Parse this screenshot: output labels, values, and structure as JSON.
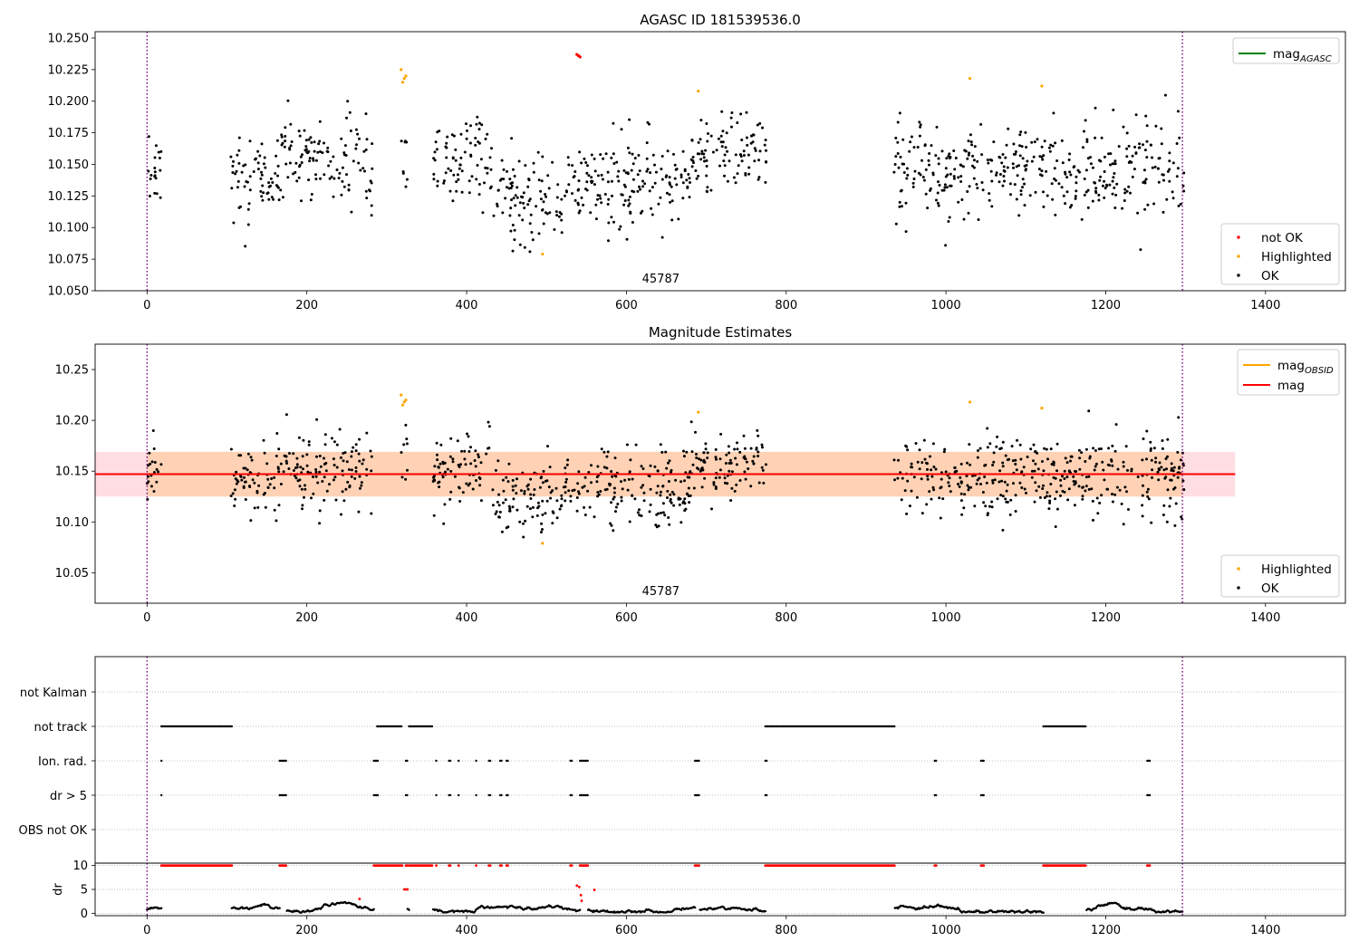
{
  "chart_data": [
    {
      "type": "scatter",
      "title": "AGASC ID 181539536.0",
      "xlim": [
        -65,
        1500
      ],
      "ylim": [
        10.05,
        10.255
      ],
      "x_ticks": [
        0,
        200,
        400,
        600,
        800,
        1000,
        1200,
        1400
      ],
      "y_ticks": [
        10.05,
        10.075,
        10.1,
        10.125,
        10.15,
        10.175,
        10.2,
        10.225,
        10.25
      ],
      "x_tick_labels": [
        "0",
        "200",
        "400",
        "600",
        "800",
        "1000",
        "1200",
        "1400"
      ],
      "y_tick_labels": [
        "10.050",
        "10.075",
        "10.100",
        "10.125",
        "10.150",
        "10.175",
        "10.200",
        "10.225",
        "10.250"
      ],
      "obsid_label": "45787",
      "obsid_label_x": 643,
      "obsid_boundaries": [
        0,
        1296
      ],
      "legend_lines": [
        {
          "label": "mag",
          "sub": "AGASC",
          "color": "#008000"
        }
      ],
      "legend_points": [
        {
          "label": "not OK",
          "color": "#ff0000"
        },
        {
          "label": "Highlighted",
          "color": "#ffa500"
        },
        {
          "label": "OK",
          "color": "#000000"
        }
      ],
      "not_ok_points": [
        [
          538,
          10.237
        ],
        [
          540,
          10.236
        ],
        [
          542,
          10.235
        ]
      ],
      "highlighted_points": [
        [
          318,
          10.225
        ],
        [
          320,
          10.215
        ],
        [
          322,
          10.218
        ],
        [
          324,
          10.22
        ],
        [
          495,
          10.079
        ],
        [
          690,
          10.208
        ],
        [
          1030,
          10.218
        ],
        [
          1120,
          10.212
        ]
      ],
      "ok_density_segments": [
        {
          "x": [
            0,
            18
          ],
          "mean": 10.152,
          "sd": 0.014
        },
        {
          "x": [
            105,
            162
          ],
          "mean": 10.14,
          "sd": 0.017
        },
        {
          "x": [
            162,
            282
          ],
          "mean": 10.152,
          "sd": 0.019
        },
        {
          "x": [
            318,
            326
          ],
          "mean": 10.165,
          "sd": 0.018
        },
        {
          "x": [
            358,
            432
          ],
          "mean": 10.152,
          "sd": 0.02
        },
        {
          "x": [
            432,
            520
          ],
          "mean": 10.122,
          "sd": 0.018
        },
        {
          "x": [
            520,
            680
          ],
          "mean": 10.136,
          "sd": 0.018
        },
        {
          "x": [
            680,
            775
          ],
          "mean": 10.16,
          "sd": 0.017
        },
        {
          "x": [
            935,
            1176
          ],
          "mean": 10.145,
          "sd": 0.018
        },
        {
          "x": [
            1176,
            1298
          ],
          "mean": 10.148,
          "sd": 0.02
        }
      ]
    },
    {
      "type": "scatter",
      "title": "Magnitude Estimates",
      "xlim": [
        -65,
        1500
      ],
      "ylim": [
        10.02,
        10.275
      ],
      "x_ticks": [
        0,
        200,
        400,
        600,
        800,
        1000,
        1200,
        1400
      ],
      "y_ticks": [
        10.05,
        10.1,
        10.15,
        10.2,
        10.25
      ],
      "x_tick_labels": [
        "0",
        "200",
        "400",
        "600",
        "800",
        "1000",
        "1200",
        "1400"
      ],
      "y_tick_labels": [
        "10.05",
        "10.10",
        "10.15",
        "10.20",
        "10.25"
      ],
      "obsid_label": "45787",
      "obsid_label_x": 643,
      "obsid_boundaries": [
        0,
        1296
      ],
      "mag": 10.147,
      "mag_band": [
        10.125,
        10.169
      ],
      "mag_line_x": [
        -65,
        1362
      ],
      "obsid_mag": 10.147,
      "obsid_band": [
        10.125,
        10.169
      ],
      "obsid_x": [
        0,
        1296
      ],
      "legend_lines": [
        {
          "label": "mag",
          "sub": "OBSID",
          "color": "#ffa500"
        },
        {
          "label": "mag",
          "sub": "",
          "color": "#ff0000"
        }
      ],
      "legend_points": [
        {
          "label": "Highlighted",
          "color": "#ffa500"
        },
        {
          "label": "OK",
          "color": "#000000"
        }
      ],
      "highlighted_points": [
        [
          318,
          10.225
        ],
        [
          320,
          10.215
        ],
        [
          322,
          10.218
        ],
        [
          324,
          10.22
        ],
        [
          495,
          10.079
        ],
        [
          690,
          10.208
        ],
        [
          1030,
          10.218
        ],
        [
          1120,
          10.212
        ]
      ]
    },
    {
      "type": "scatter",
      "xlim": [
        -65,
        1500
      ],
      "categories": [
        "not Kalman",
        "not track",
        "Ion. rad.",
        "dr > 5",
        "OBS not OK"
      ],
      "obsid_boundaries": [
        0,
        1296
      ],
      "flag_intervals": {
        "not track": [
          [
            18,
            106
          ],
          [
            288,
            320
          ],
          [
            328,
            358
          ],
          [
            774,
            936
          ],
          [
            1122,
            1176
          ]
        ],
        "Ion. rad.": [
          [
            18,
            19
          ],
          [
            166,
            175
          ],
          [
            284,
            289
          ],
          [
            324,
            326
          ],
          [
            362,
            363
          ],
          [
            378,
            380
          ],
          [
            390,
            391
          ],
          [
            412,
            413
          ],
          [
            428,
            430
          ],
          [
            442,
            444
          ],
          [
            450,
            452
          ],
          [
            530,
            532
          ],
          [
            542,
            552
          ],
          [
            686,
            692
          ],
          [
            774,
            776
          ],
          [
            986,
            988
          ],
          [
            1044,
            1048
          ],
          [
            1252,
            1256
          ]
        ],
        "dr > 5": [
          [
            18,
            19
          ],
          [
            166,
            175
          ],
          [
            284,
            289
          ],
          [
            324,
            326
          ],
          [
            362,
            363
          ],
          [
            378,
            380
          ],
          [
            390,
            391
          ],
          [
            412,
            413
          ],
          [
            428,
            430
          ],
          [
            442,
            444
          ],
          [
            450,
            452
          ],
          [
            530,
            532
          ],
          [
            542,
            552
          ],
          [
            686,
            692
          ],
          [
            774,
            776
          ],
          [
            986,
            988
          ],
          [
            1044,
            1048
          ],
          [
            1252,
            1256
          ]
        ]
      }
    },
    {
      "type": "scatter",
      "ylabel": "dr",
      "xlim": [
        -65,
        1500
      ],
      "ylim": [
        -0.5,
        10.5
      ],
      "y_ticks": [
        0,
        5,
        10
      ],
      "y_tick_labels": [
        "0",
        "5",
        "10"
      ],
      "x_ticks": [
        0,
        200,
        400,
        600,
        800,
        1000,
        1200,
        1400
      ],
      "x_tick_labels": [
        "0",
        "200",
        "400",
        "600",
        "800",
        "1000",
        "1200",
        "1400"
      ],
      "obsid_boundaries": [
        0,
        1296
      ],
      "capped_value": 10,
      "capped_intervals": [
        [
          18,
          106
        ],
        [
          166,
          175
        ],
        [
          284,
          320
        ],
        [
          324,
          326
        ],
        [
          328,
          358
        ],
        [
          362,
          363
        ],
        [
          378,
          380
        ],
        [
          390,
          391
        ],
        [
          412,
          413
        ],
        [
          428,
          430
        ],
        [
          442,
          444
        ],
        [
          450,
          452
        ],
        [
          530,
          532
        ],
        [
          542,
          552
        ],
        [
          686,
          692
        ],
        [
          774,
          936
        ],
        [
          986,
          988
        ],
        [
          1044,
          1048
        ],
        [
          1122,
          1176
        ],
        [
          1252,
          1256
        ]
      ],
      "red_points": [
        [
          266,
          3.0
        ],
        [
          322,
          5.0
        ],
        [
          324,
          5.0
        ],
        [
          326,
          5.0
        ],
        [
          538,
          5.8
        ],
        [
          541,
          5.5
        ],
        [
          543,
          3.8
        ],
        [
          544,
          2.6
        ],
        [
          560,
          4.9
        ]
      ],
      "black_segments": [
        [
          0,
          18
        ],
        [
          106,
          166
        ],
        [
          175,
          284
        ],
        [
          326,
          328
        ],
        [
          358,
          530
        ],
        [
          532,
          542
        ],
        [
          552,
          686
        ],
        [
          692,
          774
        ],
        [
          936,
          1122
        ],
        [
          1176,
          1296
        ]
      ]
    }
  ]
}
